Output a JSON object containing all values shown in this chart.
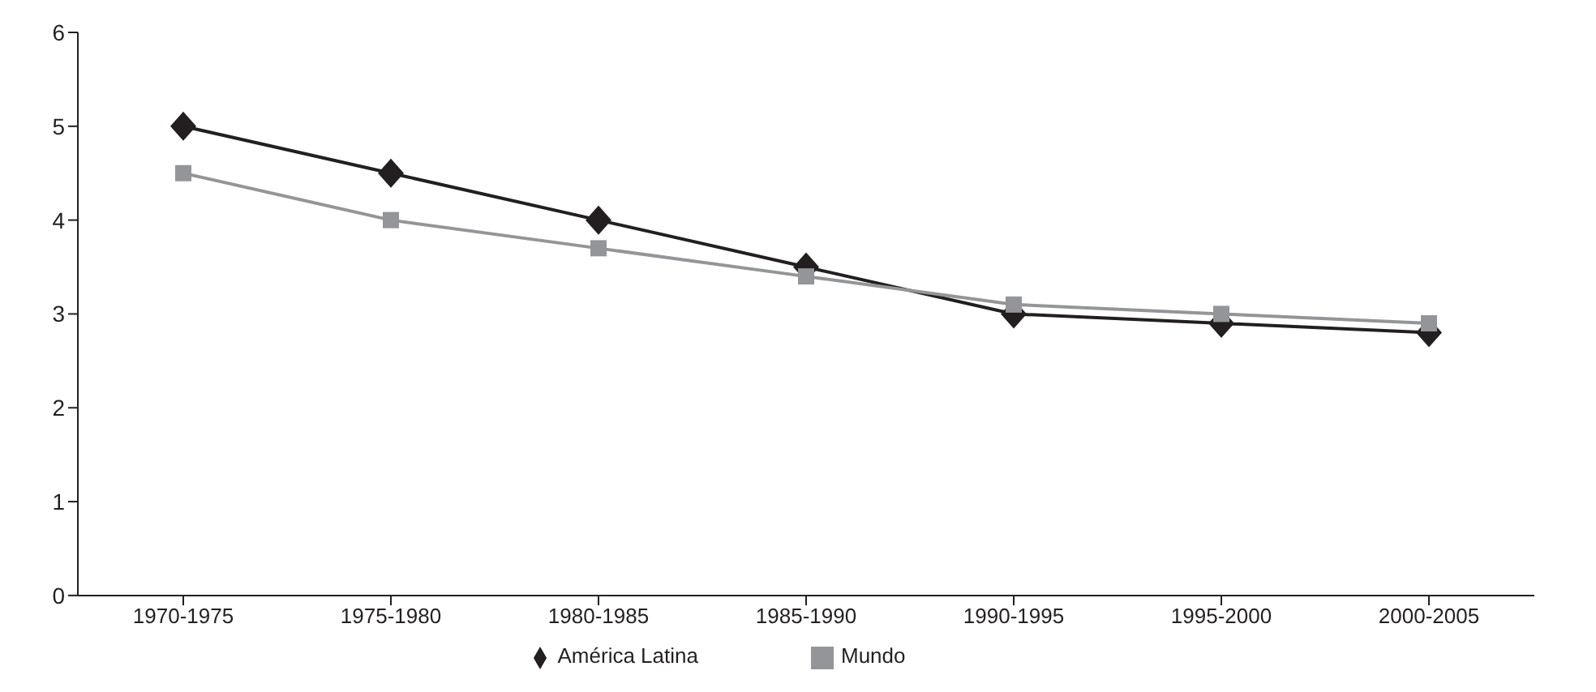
{
  "chart_data": {
    "type": "line",
    "categories": [
      "1970-1975",
      "1975-1980",
      "1980-1985",
      "1985-1990",
      "1990-1995",
      "1995-2000",
      "2000-2005"
    ],
    "series": [
      {
        "name": "América Latina",
        "color": "#231f20",
        "marker": "diamond",
        "values": [
          5.0,
          4.5,
          4.0,
          3.5,
          3.0,
          2.9,
          2.8
        ]
      },
      {
        "name": "Mundo",
        "color": "#939598",
        "marker": "square",
        "values": [
          4.5,
          4.0,
          3.7,
          3.4,
          3.1,
          3.0,
          2.9
        ]
      }
    ],
    "ylim": [
      0,
      6
    ],
    "yticks": [
      0,
      1,
      2,
      3,
      4,
      5,
      6
    ],
    "grid": false,
    "legend": "bottom"
  }
}
